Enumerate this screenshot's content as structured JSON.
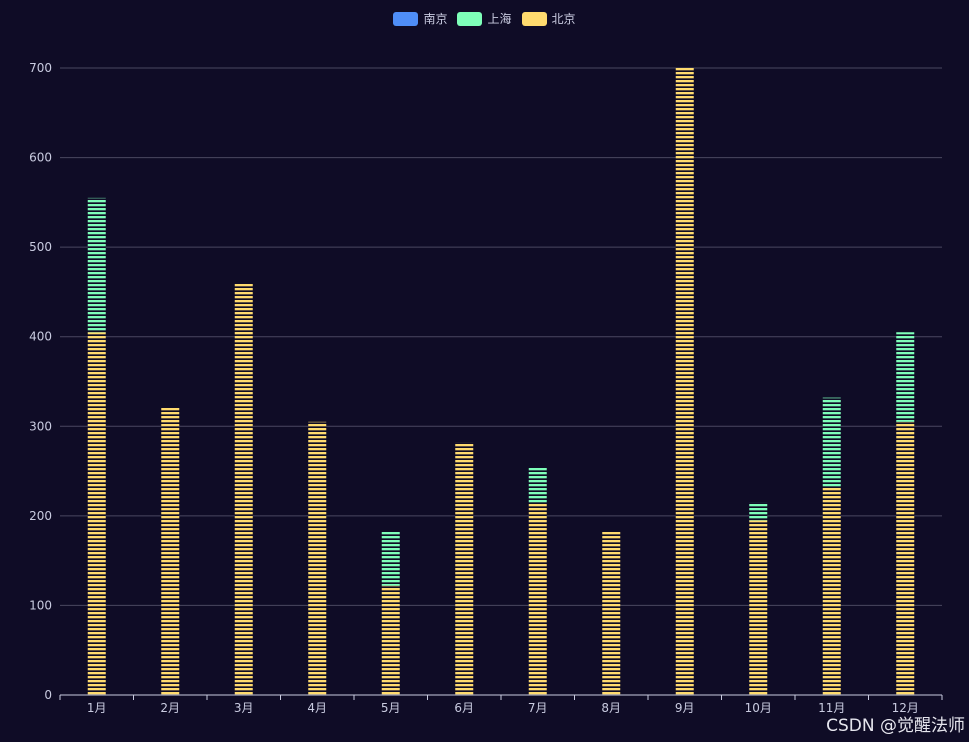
{
  "chart_data": {
    "type": "bar",
    "stacked": true,
    "categories": [
      "1月",
      "2月",
      "3月",
      "4月",
      "5月",
      "6月",
      "7月",
      "8月",
      "9月",
      "10月",
      "11月",
      "12月"
    ],
    "series": [
      {
        "name": "南京",
        "color": "#4f8ef7",
        "values": [
          0,
          0,
          0,
          0,
          0,
          0,
          0,
          0,
          0,
          0,
          0,
          0
        ]
      },
      {
        "name": "上海",
        "color": "#7effb9",
        "values": [
          150,
          0,
          0,
          0,
          60,
          0,
          40,
          0,
          0,
          20,
          100,
          100
        ]
      },
      {
        "name": "北京",
        "color": "#ffdb6e",
        "values": [
          405,
          321,
          460,
          305,
          122,
          282,
          215,
          182,
          700,
          195,
          232,
          305
        ]
      }
    ],
    "y_ticks": [
      "0",
      "100",
      "200",
      "300",
      "400",
      "500",
      "600",
      "700"
    ],
    "ylim": [
      0,
      700
    ],
    "grid": true,
    "legend_position": "top-center"
  },
  "watermark": "CSDN @觉醒法师"
}
